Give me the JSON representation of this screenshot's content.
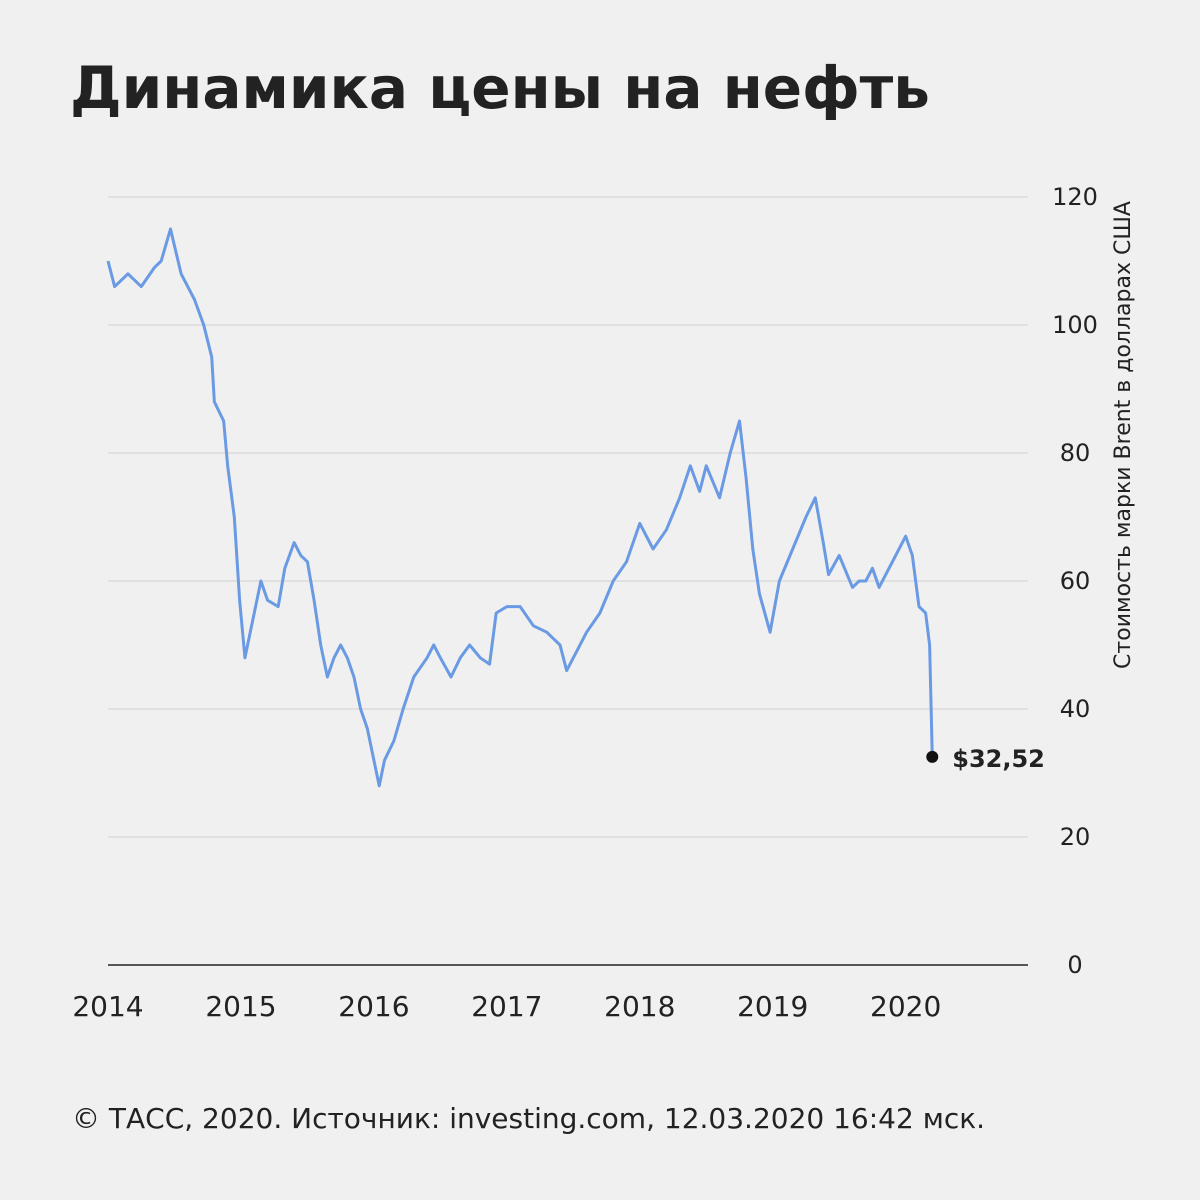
{
  "chart_data": {
    "type": "line",
    "title": "Динамика цены на нефть",
    "y_label": "Стоимость марки Brent в долларах США",
    "footer": "© ТАСС, 2020. Источник: investing.com, 12.03.2020 16:42 мск.",
    "x": [
      2014.0,
      2014.05,
      2014.15,
      2014.25,
      2014.35,
      2014.4,
      2014.47,
      2014.55,
      2014.65,
      2014.72,
      2014.78,
      2014.8,
      2014.87,
      2014.9,
      2014.95,
      2014.99,
      2015.03,
      2015.1,
      2015.15,
      2015.2,
      2015.28,
      2015.33,
      2015.4,
      2015.45,
      2015.5,
      2015.55,
      2015.6,
      2015.65,
      2015.7,
      2015.75,
      2015.8,
      2015.85,
      2015.9,
      2015.95,
      2016.04,
      2016.08,
      2016.15,
      2016.22,
      2016.3,
      2016.4,
      2016.45,
      2016.5,
      2016.58,
      2016.65,
      2016.72,
      2016.8,
      2016.87,
      2016.92,
      2017.0,
      2017.1,
      2017.2,
      2017.3,
      2017.4,
      2017.45,
      2017.5,
      2017.6,
      2017.7,
      2017.8,
      2017.9,
      2018.0,
      2018.1,
      2018.2,
      2018.3,
      2018.38,
      2018.45,
      2018.5,
      2018.6,
      2018.68,
      2018.75,
      2018.8,
      2018.85,
      2018.9,
      2018.98,
      2019.05,
      2019.15,
      2019.25,
      2019.32,
      2019.38,
      2019.42,
      2019.5,
      2019.6,
      2019.65,
      2019.7,
      2019.75,
      2019.8,
      2019.9,
      2020.0,
      2020.05,
      2020.1,
      2020.15,
      2020.18,
      2020.2
    ],
    "series": [
      {
        "name": "Brent",
        "color": "#6a9ae4",
        "values": [
          110,
          106,
          108,
          106,
          109,
          110,
          115,
          108,
          104,
          100,
          95,
          88,
          85,
          78,
          70,
          57,
          48,
          55,
          60,
          57,
          56,
          62,
          66,
          64,
          63,
          57,
          50,
          45,
          48,
          50,
          48,
          45,
          40,
          37,
          28,
          32,
          35,
          40,
          45,
          48,
          50,
          48,
          45,
          48,
          50,
          48,
          47,
          55,
          56,
          56,
          53,
          52,
          50,
          46,
          48,
          52,
          55,
          60,
          63,
          69,
          65,
          68,
          73,
          78,
          74,
          78,
          73,
          80,
          85,
          76,
          65,
          58,
          52,
          60,
          65,
          70,
          73,
          66,
          61,
          64,
          59,
          60,
          60,
          62,
          59,
          63,
          67,
          64,
          56,
          55,
          50,
          32.52
        ]
      }
    ],
    "end_point": {
      "x": 2020.2,
      "value": 32.52,
      "label": "$32,52"
    },
    "xlim": [
      2014,
      2020.92
    ],
    "xticks": [
      2014,
      2015,
      2016,
      2017,
      2018,
      2019,
      2020
    ],
    "ylim": [
      0,
      120
    ],
    "yticks": [
      0,
      20,
      40,
      60,
      80,
      100,
      120
    ],
    "grid": true
  }
}
